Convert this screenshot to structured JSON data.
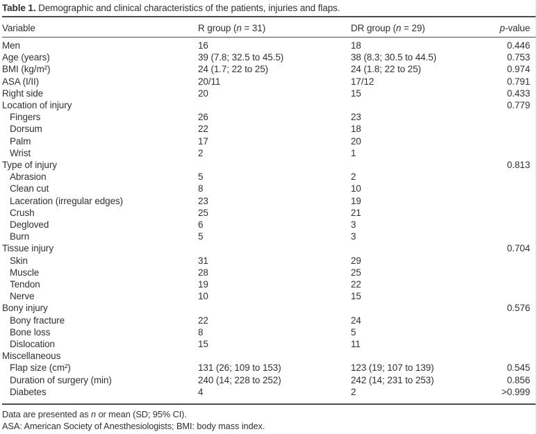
{
  "title": {
    "label": "Table 1.",
    "text": "Demographic and clinical characteristics of the patients, injuries and flaps."
  },
  "table": {
    "header": {
      "variable": "Variable",
      "r_group": {
        "pre": "R group (",
        "italic": "n",
        "post": " = 31)"
      },
      "dr_group": {
        "pre": "DR group (",
        "italic": "n",
        "post": " = 29)"
      },
      "p_value": {
        "italic": "p",
        "post": "-value"
      }
    },
    "rows": [
      {
        "label": "Men",
        "indent": false,
        "r": "16",
        "dr": "18",
        "p": "0.446"
      },
      {
        "label": "Age (years)",
        "indent": false,
        "r": "39 (7.8; 32.5 to 45.5)",
        "dr": "38 (8.3; 30.5 to 44.5)",
        "p": "0.753"
      },
      {
        "label": "BMI (kg/m²)",
        "indent": false,
        "r": "24 (1.7; 22 to 25)",
        "dr": "24 (1.8; 22 to 25)",
        "p": "0.974"
      },
      {
        "label": "ASA (I/II)",
        "indent": false,
        "r": "20/11",
        "dr": "17/12",
        "p": "0.791"
      },
      {
        "label": "Right side",
        "indent": false,
        "r": "20",
        "dr": "15",
        "p": "0.433"
      },
      {
        "label": "Location of injury",
        "indent": false,
        "r": "",
        "dr": "",
        "p": "0.779"
      },
      {
        "label": "Fingers",
        "indent": true,
        "r": "26",
        "dr": "23",
        "p": ""
      },
      {
        "label": "Dorsum",
        "indent": true,
        "r": "22",
        "dr": "18",
        "p": ""
      },
      {
        "label": "Palm",
        "indent": true,
        "r": "17",
        "dr": "20",
        "p": ""
      },
      {
        "label": "Wrist",
        "indent": true,
        "r": "2",
        "dr": "1",
        "p": ""
      },
      {
        "label": "Type of injury",
        "indent": false,
        "r": "",
        "dr": "",
        "p": "0.813"
      },
      {
        "label": "Abrasion",
        "indent": true,
        "r": "5",
        "dr": "2",
        "p": ""
      },
      {
        "label": "Clean cut",
        "indent": true,
        "r": "8",
        "dr": "10",
        "p": ""
      },
      {
        "label": "Laceration (irregular edges)",
        "indent": true,
        "r": "23",
        "dr": "19",
        "p": ""
      },
      {
        "label": "Crush",
        "indent": true,
        "r": "25",
        "dr": "21",
        "p": ""
      },
      {
        "label": "Degloved",
        "indent": true,
        "r": "6",
        "dr": "3",
        "p": ""
      },
      {
        "label": "Burn",
        "indent": true,
        "r": "5",
        "dr": "3",
        "p": ""
      },
      {
        "label": "Tissue injury",
        "indent": false,
        "r": "",
        "dr": "",
        "p": "0.704"
      },
      {
        "label": "Skin",
        "indent": true,
        "r": "31",
        "dr": "29",
        "p": ""
      },
      {
        "label": "Muscle",
        "indent": true,
        "r": "28",
        "dr": "25",
        "p": ""
      },
      {
        "label": "Tendon",
        "indent": true,
        "r": "19",
        "dr": "22",
        "p": ""
      },
      {
        "label": "Nerve",
        "indent": true,
        "r": "10",
        "dr": "15",
        "p": ""
      },
      {
        "label": "Bony injury",
        "indent": false,
        "r": "",
        "dr": "",
        "p": "0.576"
      },
      {
        "label": "Bony fracture",
        "indent": true,
        "r": "22",
        "dr": "24",
        "p": ""
      },
      {
        "label": "Bone loss",
        "indent": true,
        "r": "8",
        "dr": "5",
        "p": ""
      },
      {
        "label": "Dislocation",
        "indent": true,
        "r": "15",
        "dr": "11",
        "p": ""
      },
      {
        "label": "Miscellaneous",
        "indent": false,
        "r": "",
        "dr": "",
        "p": ""
      },
      {
        "label": "Flap size (cm²)",
        "indent": true,
        "r": "131 (26; 109 to 153)",
        "dr": "123 (19; 107 to 139)",
        "p": "0.545"
      },
      {
        "label": "Duration of surgery (min)",
        "indent": true,
        "r": "240 (14; 228 to 252)",
        "dr": "242 (14; 231 to 253)",
        "p": "0.856"
      },
      {
        "label": "Diabetes",
        "indent": true,
        "r": "4",
        "dr": "2",
        "p": ">0.999"
      }
    ]
  },
  "footnotes": {
    "line1": {
      "pre": "Data are presented as ",
      "italic": "n",
      "post": " or mean (SD; 95% CI)."
    },
    "line2": "ASA: American Society of Anesthesiologists; BMI: body mass index."
  }
}
